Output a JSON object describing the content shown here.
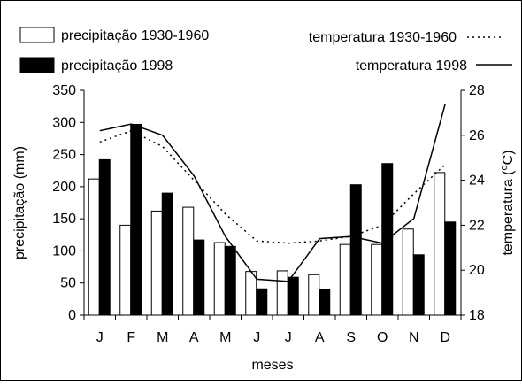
{
  "chart_data": {
    "type": "bar",
    "categories": [
      "J",
      "F",
      "M",
      "A",
      "M",
      "J",
      "J",
      "A",
      "S",
      "O",
      "N",
      "D"
    ],
    "xlabel": "meses",
    "ylabel_left": "precipitação  (mm)",
    "ylabel_right_prefix": "temperatura  (",
    "ylabel_right_sup": "o",
    "ylabel_right_suffix": "C)",
    "ylim_left": [
      0,
      350
    ],
    "yticks_left": [
      0,
      50,
      100,
      150,
      200,
      250,
      300,
      350
    ],
    "ylim_right": [
      18,
      28
    ],
    "yticks_right": [
      18,
      20,
      22,
      24,
      26,
      28
    ],
    "bar_series": [
      {
        "name": "precipitação 1930-1960",
        "color": "#ffffff",
        "values": [
          212,
          140,
          162,
          168,
          113,
          68,
          69,
          63,
          110,
          110,
          134,
          222
        ]
      },
      {
        "name": "precipitação 1998",
        "color": "#000000",
        "values": [
          242,
          297,
          190,
          117,
          107,
          41,
          59,
          40,
          203,
          236,
          94,
          145
        ]
      }
    ],
    "line_series": [
      {
        "name": "temperatura  1930-1960",
        "style": "dotted",
        "axis": "right",
        "values": [
          25.7,
          26.2,
          25.5,
          24.0,
          22.5,
          21.3,
          21.2,
          21.3,
          21.5,
          22.0,
          23.4,
          24.7
        ]
      },
      {
        "name": "temperatura  1998",
        "style": "solid",
        "axis": "right",
        "values": [
          26.2,
          26.5,
          26.0,
          24.2,
          21.5,
          19.6,
          19.5,
          21.4,
          21.5,
          21.2,
          22.3,
          27.4
        ]
      }
    ],
    "legend": "top"
  }
}
